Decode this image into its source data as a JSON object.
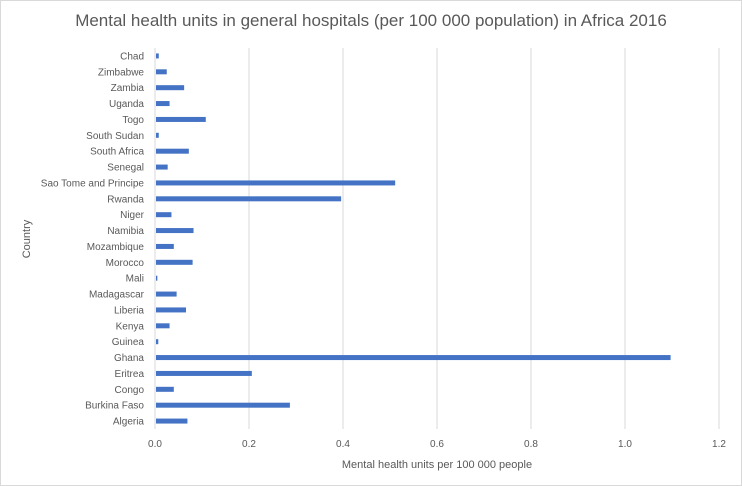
{
  "chart_data": {
    "type": "bar",
    "orientation": "horizontal",
    "title": "Mental health units in general hospitals (per 100 000 population) in Africa 2016",
    "xlabel": "Mental health units per 100 000 people",
    "ylabel": "Country",
    "xlim": [
      0,
      1.2
    ],
    "xticks": [
      "0.0",
      "0.2",
      "0.4",
      "0.6",
      "0.8",
      "1.0",
      "1.2"
    ],
    "grid": "vertical",
    "bar_color": "#4472c4",
    "categories": [
      "Chad",
      "Zimbabwe",
      "Zambia",
      "Uganda",
      "Togo",
      "South Sudan",
      "South Africa",
      "Senegal",
      "Sao Tome and Principe",
      "Rwanda",
      "Niger",
      "Namibia",
      "Mozambique",
      "Morocco",
      "Mali",
      "Madagascar",
      "Liberia",
      "Kenya",
      "Guinea",
      "Ghana",
      "Eritrea",
      "Congo",
      "Burkina Faso",
      "Algeria"
    ],
    "values": [
      0.008,
      0.025,
      0.062,
      0.031,
      0.108,
      0.008,
      0.072,
      0.027,
      0.511,
      0.396,
      0.035,
      0.082,
      0.04,
      0.08,
      0.005,
      0.046,
      0.066,
      0.031,
      0.007,
      1.097,
      0.206,
      0.04,
      0.287,
      0.069
    ]
  }
}
